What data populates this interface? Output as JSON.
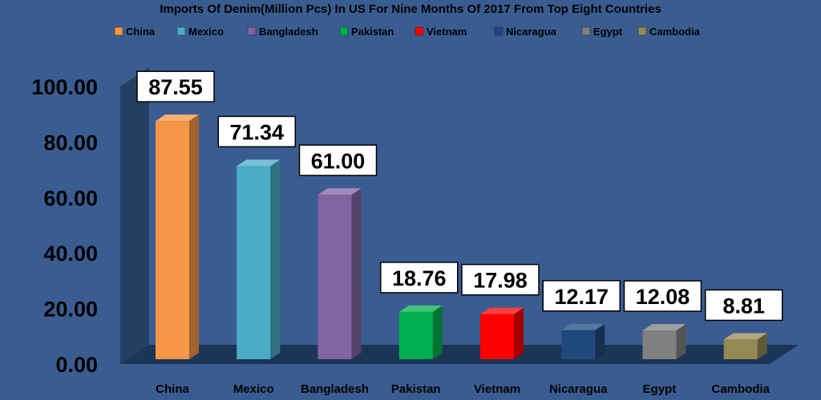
{
  "chart_data": {
    "type": "bar",
    "title": "Imports Of Denim(Million Pcs) In US For Nine Months Of 2017 From Top Eight Countries",
    "categories": [
      "China",
      "Mexico",
      "Bangladesh",
      "Pakistan",
      "Vietnam",
      "Nicaragua",
      "Egypt",
      "Cambodia"
    ],
    "values": [
      87.55,
      71.34,
      61.0,
      18.76,
      17.98,
      12.17,
      12.08,
      8.81
    ],
    "data_labels": [
      "87.55",
      "71.34",
      "61.00",
      "18.76",
      "17.98",
      "12.17",
      "12.08",
      "8.81"
    ],
    "colors": [
      "#f79646",
      "#4bacc6",
      "#8064a2",
      "#00b050",
      "#ff0000",
      "#1f497d",
      "#808080",
      "#948a54"
    ],
    "ylim": [
      0,
      100
    ],
    "yticks": [
      0,
      20,
      40,
      60,
      80,
      100
    ],
    "ytick_labels": [
      "0.00",
      "20.00",
      "40.00",
      "60.00",
      "80.00",
      "100.00"
    ],
    "legend_position": "top",
    "grid": false,
    "xlabel": "",
    "ylabel": ""
  }
}
